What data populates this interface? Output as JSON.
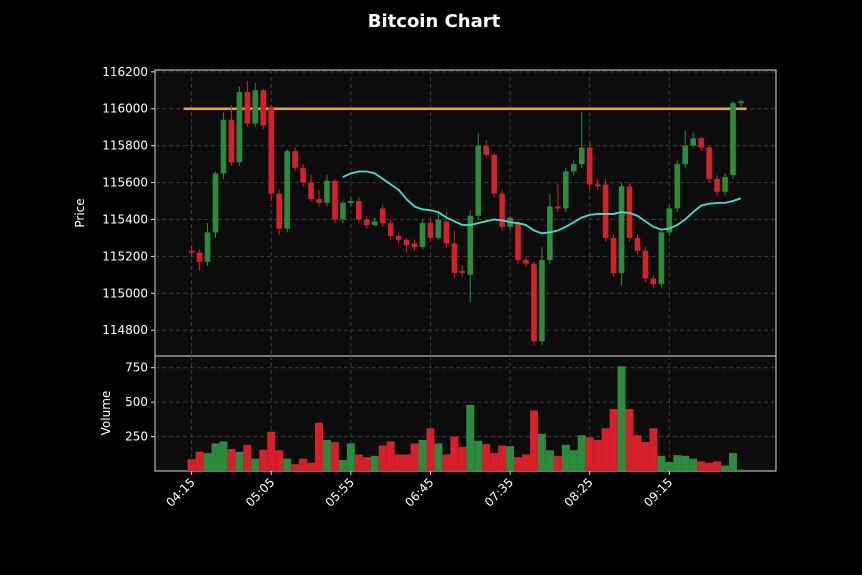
{
  "chart_data": {
    "type": "candlestick",
    "title": "Bitcoin Chart",
    "ylabel": "Price",
    "x": [
      "04:15",
      "04:20",
      "04:25",
      "04:30",
      "04:35",
      "04:40",
      "04:45",
      "04:50",
      "04:55",
      "05:00",
      "05:05",
      "05:10",
      "05:15",
      "05:20",
      "05:25",
      "05:30",
      "05:35",
      "05:40",
      "05:45",
      "05:50",
      "05:55",
      "06:00",
      "06:05",
      "06:10",
      "06:15",
      "06:20",
      "06:25",
      "06:30",
      "06:35",
      "06:40",
      "06:45",
      "06:50",
      "06:55",
      "07:00",
      "07:05",
      "07:10",
      "07:15",
      "07:20",
      "07:25",
      "07:30",
      "07:35",
      "07:40",
      "07:45",
      "07:50",
      "07:55",
      "08:00",
      "08:05",
      "08:10",
      "08:15",
      "08:20",
      "08:25",
      "08:30",
      "08:35",
      "08:40",
      "08:45",
      "08:50",
      "08:55",
      "09:00",
      "09:05",
      "09:10",
      "09:15",
      "09:20",
      "09:25",
      "09:30",
      "09:35",
      "09:40",
      "09:45",
      "09:50",
      "09:55",
      "10:00"
    ],
    "open": [
      115230,
      115220,
      115170,
      115330,
      115650,
      115940,
      115710,
      116090,
      115920,
      116100,
      116010,
      115540,
      115350,
      115770,
      115680,
      115600,
      115510,
      115490,
      115610,
      115400,
      115490,
      115500,
      115400,
      115370,
      115460,
      115380,
      115310,
      115290,
      115270,
      115250,
      115380,
      115300,
      115390,
      115270,
      115120,
      115100,
      115420,
      115800,
      115750,
      115540,
      115360,
      115380,
      115180,
      115160,
      114740,
      115180,
      115470,
      115460,
      115660,
      115700,
      115790,
      115590,
      115590,
      115300,
      115110,
      115580,
      115300,
      115230,
      115080,
      115050,
      115330,
      115460,
      115700,
      115800,
      115840,
      115790,
      115620,
      115550,
      115640,
      116030
    ],
    "high": [
      115260,
      115240,
      115380,
      115660,
      115980,
      116020,
      116120,
      116150,
      116140,
      116110,
      116020,
      115560,
      115780,
      115790,
      115700,
      115640,
      115560,
      115640,
      115620,
      115500,
      115520,
      115520,
      115420,
      115410,
      115480,
      115400,
      115330,
      115300,
      115290,
      115400,
      115400,
      115440,
      115440,
      115340,
      115150,
      115450,
      115870,
      115830,
      115760,
      115560,
      115420,
      115400,
      115200,
      115170,
      115250,
      115540,
      115590,
      115680,
      115720,
      115980,
      115820,
      115620,
      115620,
      115320,
      115600,
      115600,
      115320,
      115250,
      115100,
      115350,
      115480,
      115720,
      115880,
      115870,
      115850,
      115800,
      115640,
      115650,
      116040,
      116050
    ],
    "low": [
      115200,
      115120,
      115150,
      115300,
      115620,
      115690,
      115690,
      115900,
      115900,
      115890,
      115500,
      115320,
      115330,
      115660,
      115580,
      115500,
      115470,
      115470,
      115380,
      115380,
      115470,
      115380,
      115350,
      115360,
      115360,
      115290,
      115270,
      115220,
      115230,
      115240,
      115280,
      115290,
      115250,
      115080,
      115090,
      114950,
      115400,
      115730,
      115520,
      115340,
      115340,
      115160,
      115140,
      114720,
      114720,
      115160,
      115440,
      115440,
      115640,
      115680,
      115560,
      115560,
      115280,
      115090,
      115040,
      115280,
      115210,
      115060,
      115030,
      115030,
      115310,
      115440,
      115680,
      115790,
      115770,
      115600,
      115530,
      115530,
      115620,
      116010
    ],
    "close": [
      115220,
      115170,
      115330,
      115650,
      115940,
      115710,
      116090,
      115920,
      116100,
      115910,
      115540,
      115350,
      115770,
      115680,
      115600,
      115510,
      115490,
      115610,
      115400,
      115490,
      115500,
      115400,
      115370,
      115390,
      115380,
      115310,
      115290,
      115260,
      115250,
      115380,
      115300,
      115400,
      115270,
      115110,
      115110,
      115420,
      115800,
      115750,
      115540,
      115360,
      115410,
      115180,
      115160,
      114740,
      115180,
      115470,
      115460,
      115660,
      115700,
      115790,
      115590,
      115580,
      115300,
      115110,
      115580,
      115300,
      115230,
      115080,
      115050,
      115330,
      115460,
      115700,
      115800,
      115840,
      115790,
      115620,
      115550,
      115630,
      116030,
      116040
    ],
    "volume": [
      85,
      140,
      130,
      200,
      215,
      160,
      140,
      190,
      90,
      155,
      285,
      150,
      90,
      50,
      90,
      60,
      350,
      225,
      210,
      80,
      200,
      120,
      100,
      110,
      185,
      215,
      120,
      120,
      200,
      225,
      310,
      200,
      120,
      250,
      175,
      480,
      220,
      195,
      130,
      185,
      180,
      100,
      120,
      440,
      270,
      150,
      110,
      190,
      150,
      260,
      245,
      225,
      310,
      450,
      760,
      450,
      260,
      210,
      310,
      110,
      65,
      115,
      110,
      90,
      70,
      60,
      70,
      40,
      130,
      10
    ],
    "up_color": "#2a8c3c",
    "down_color": "#d8202a",
    "overlays": [
      {
        "color": "#40e0d0",
        "values": [
          null,
          null,
          null,
          null,
          null,
          null,
          null,
          null,
          null,
          null,
          null,
          null,
          null,
          null,
          null,
          null,
          null,
          null,
          null,
          115630,
          115650,
          115660,
          115660,
          115650,
          115620,
          115590,
          115560,
          115510,
          115470,
          115455,
          115450,
          115440,
          115410,
          115390,
          115370,
          115370,
          115380,
          115390,
          115400,
          115395,
          115385,
          115380,
          115370,
          115340,
          115325,
          115330,
          115340,
          115360,
          115385,
          115410,
          115425,
          115430,
          115430,
          115430,
          115440,
          115435,
          115420,
          115390,
          115360,
          115345,
          115350,
          115370,
          115400,
          115440,
          115475,
          115485,
          115490,
          115490,
          115500,
          115515
        ]
      }
    ],
    "hline": {
      "value": 116000,
      "color": "#f5a31a"
    },
    "xlim": [
      "03:52",
      "10:22"
    ],
    "xticks": [
      "04:15",
      "05:05",
      "05:55",
      "06:45",
      "07:35",
      "08:25",
      "09:15"
    ],
    "ylim": [
      114660,
      116210
    ],
    "yticks": [
      114800,
      115000,
      115200,
      115400,
      115600,
      115800,
      116000,
      116200
    ],
    "grid": true,
    "volume_panel": {
      "ylabel": "Volume",
      "ylim": [
        0,
        835
      ],
      "yticks": [
        250,
        500,
        750
      ]
    }
  }
}
